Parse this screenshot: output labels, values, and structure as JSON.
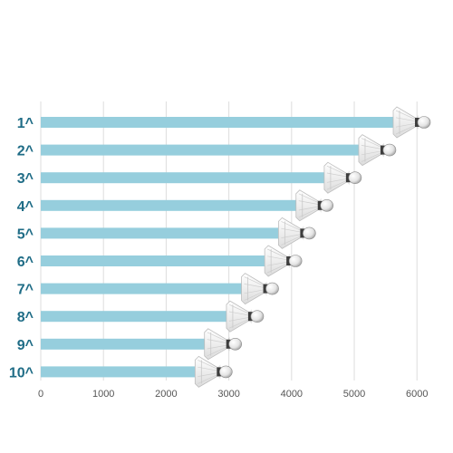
{
  "chart_data": {
    "type": "bar",
    "orientation": "horizontal",
    "categories": [
      "1^",
      "2^",
      "3^",
      "4^",
      "5^",
      "6^",
      "7^",
      "8^",
      "9^",
      "10^"
    ],
    "values": [
      5650,
      5100,
      4550,
      4100,
      3820,
      3600,
      3230,
      2990,
      2640,
      2490
    ],
    "x_ticks": [
      0,
      1000,
      2000,
      3000,
      4000,
      5000,
      6000
    ],
    "xlim": [
      0,
      6300
    ],
    "grid": true,
    "title": "",
    "xlabel": "",
    "ylabel": "",
    "colors": {
      "bar": "#96cedd",
      "label": "#1f6c86",
      "grid": "#dddddd"
    },
    "marker_icon": "shuttlecock-icon"
  }
}
